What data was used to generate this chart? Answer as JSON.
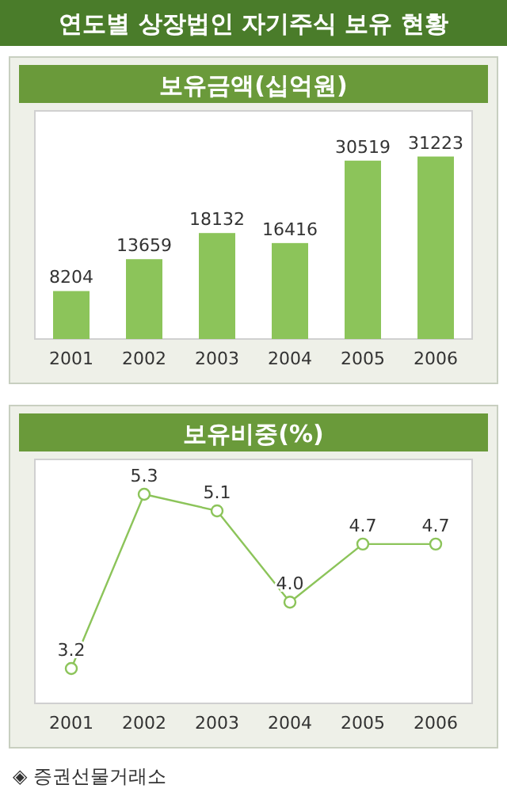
{
  "chart_data": [
    {
      "type": "bar",
      "title": "연도별 상장법인 자기주식 보유 현황",
      "subtitle": "보유금액(십억원)",
      "categories": [
        "2001",
        "2002",
        "2003",
        "2004",
        "2005",
        "2006"
      ],
      "values": [
        8204,
        13659,
        18132,
        16416,
        30519,
        31223
      ],
      "color": "#8cc45a",
      "data_labels": true
    },
    {
      "type": "line",
      "title": "보유비중(%)",
      "categories": [
        "2001",
        "2002",
        "2003",
        "2004",
        "2005",
        "2006"
      ],
      "values": [
        3.2,
        5.3,
        5.1,
        4.0,
        4.7,
        4.7
      ],
      "value_labels": [
        "3.2",
        "5.3",
        "5.1",
        "4.0",
        "4.7",
        "4.7"
      ],
      "color": "#8cc45a",
      "marker": "circle",
      "line_style": "solid",
      "annotations": [
        "◈ 증권선물거래소"
      ]
    }
  ]
}
